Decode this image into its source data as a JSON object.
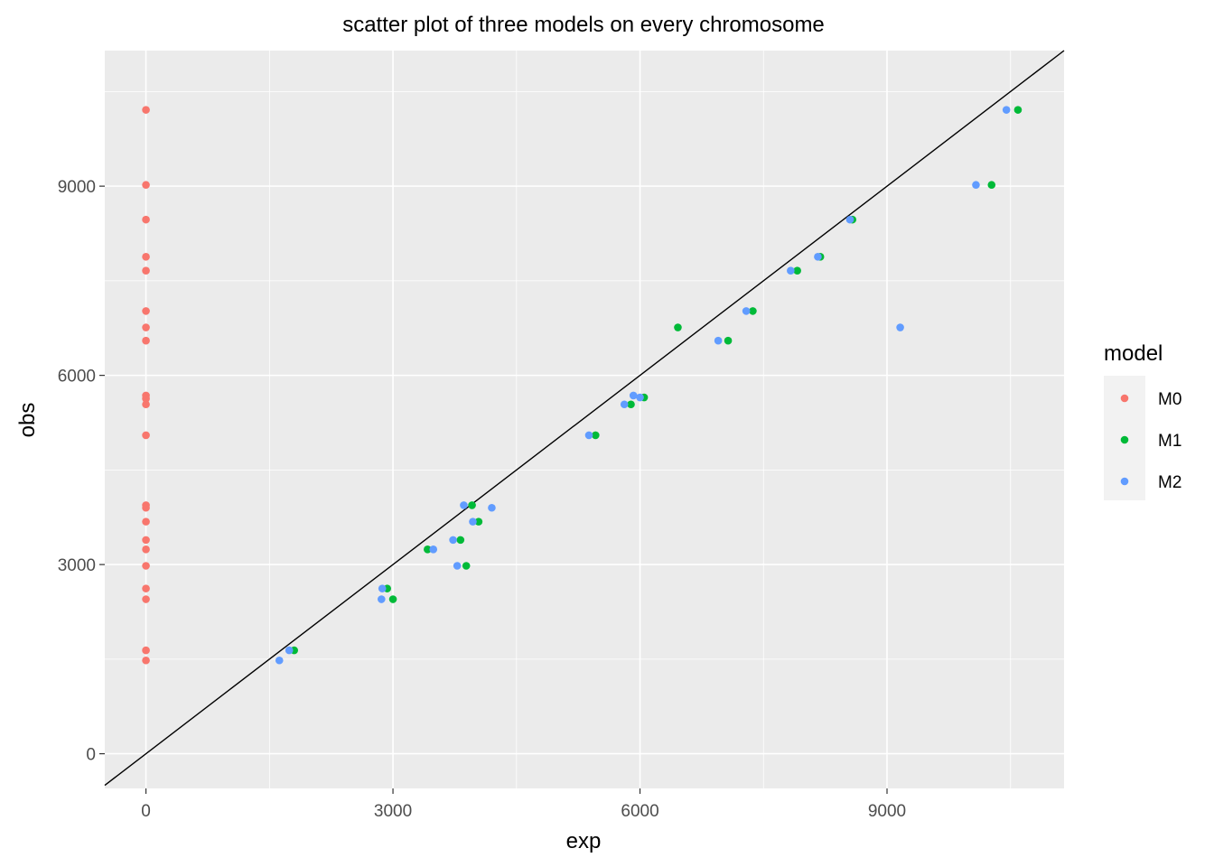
{
  "chart_data": {
    "type": "scatter",
    "title": "scatter plot of three models on every chromosome",
    "xlabel": "exp",
    "ylabel": "obs",
    "xlim": [
      -500,
      11150
    ],
    "ylim": [
      -550,
      11150
    ],
    "x_ticks": [
      0,
      3000,
      6000,
      9000
    ],
    "y_ticks": [
      0,
      3000,
      6000,
      9000
    ],
    "grid": true,
    "reference_line": {
      "type": "identity",
      "slope": 1,
      "intercept": 0
    },
    "legend": {
      "title": "model",
      "position": "right"
    },
    "series": [
      {
        "name": "M0",
        "color": "#F8766D",
        "points": [
          [
            0,
            10210
          ],
          [
            0,
            9020
          ],
          [
            0,
            8470
          ],
          [
            0,
            7880
          ],
          [
            0,
            7660
          ],
          [
            0,
            7020
          ],
          [
            0,
            6760
          ],
          [
            0,
            6550
          ],
          [
            0,
            5680
          ],
          [
            0,
            5630
          ],
          [
            0,
            5540
          ],
          [
            0,
            5050
          ],
          [
            0,
            3940
          ],
          [
            0,
            3900
          ],
          [
            0,
            3680
          ],
          [
            0,
            3390
          ],
          [
            0,
            3240
          ],
          [
            0,
            2980
          ],
          [
            0,
            2620
          ],
          [
            0,
            2450
          ],
          [
            0,
            1640
          ],
          [
            0,
            1480
          ]
        ]
      },
      {
        "name": "M1",
        "color": "#00BA38",
        "points": [
          [
            10590,
            10210
          ],
          [
            10270,
            9020
          ],
          [
            8580,
            8470
          ],
          [
            8190,
            7880
          ],
          [
            7910,
            7660
          ],
          [
            7370,
            7020
          ],
          [
            6460,
            6760
          ],
          [
            7070,
            6550
          ],
          [
            6050,
            5650
          ],
          [
            5890,
            5540
          ],
          [
            5460,
            5050
          ],
          [
            3960,
            3940
          ],
          [
            4040,
            3680
          ],
          [
            3820,
            3390
          ],
          [
            3420,
            3240
          ],
          [
            3890,
            2980
          ],
          [
            2930,
            2620
          ],
          [
            3000,
            2450
          ],
          [
            1800,
            1640
          ]
        ]
      },
      {
        "name": "M2",
        "color": "#619CFF",
        "points": [
          [
            10450,
            10210
          ],
          [
            10080,
            9020
          ],
          [
            8550,
            8470
          ],
          [
            8160,
            7880
          ],
          [
            7830,
            7660
          ],
          [
            7290,
            7020
          ],
          [
            9160,
            6760
          ],
          [
            6950,
            6550
          ],
          [
            5920,
            5680
          ],
          [
            6000,
            5650
          ],
          [
            5810,
            5540
          ],
          [
            5380,
            5050
          ],
          [
            3860,
            3940
          ],
          [
            4200,
            3900
          ],
          [
            3970,
            3680
          ],
          [
            3730,
            3390
          ],
          [
            3490,
            3240
          ],
          [
            3780,
            2980
          ],
          [
            2870,
            2620
          ],
          [
            2860,
            2450
          ],
          [
            1740,
            1640
          ],
          [
            1620,
            1480
          ]
        ]
      }
    ]
  }
}
